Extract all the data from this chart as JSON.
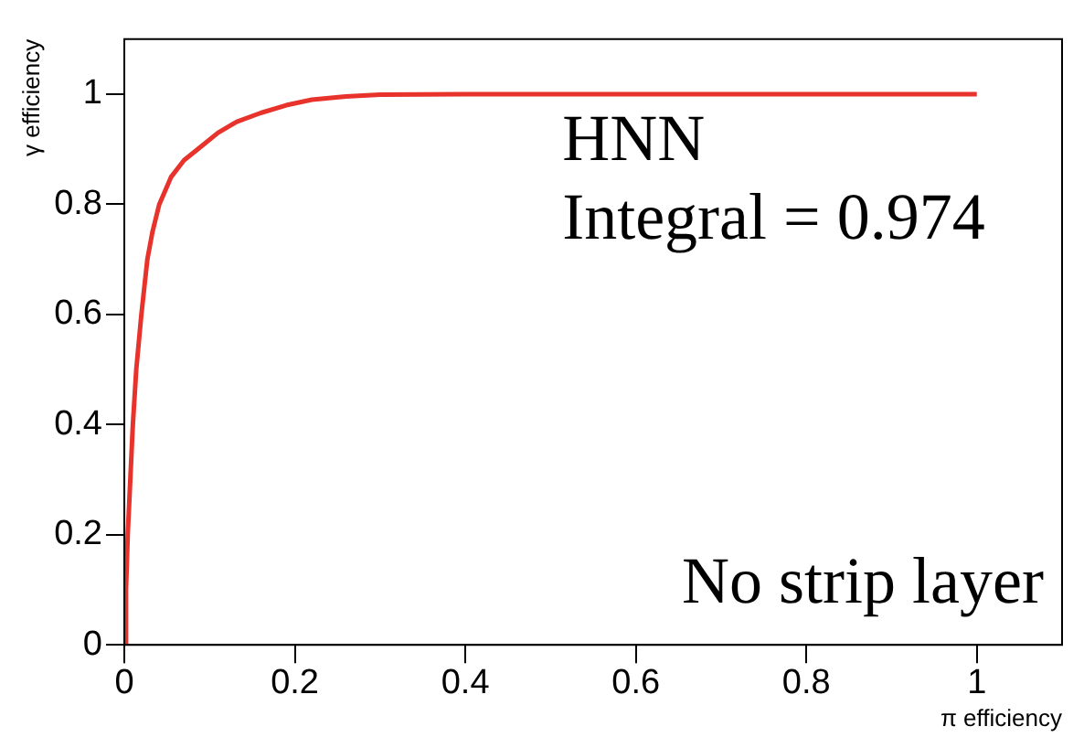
{
  "chart_data": {
    "type": "line",
    "xlabel": "π efficiency",
    "ylabel": "γ efficiency",
    "x": [
      0,
      0.002,
      0.004,
      0.007,
      0.01,
      0.014,
      0.02,
      0.027,
      0.033,
      0.041,
      0.055,
      0.07,
      0.086,
      0.11,
      0.132,
      0.16,
      0.19,
      0.22,
      0.26,
      0.3,
      0.4,
      0.6,
      0.8,
      1
    ],
    "series": [
      {
        "color": "#e8322c",
        "values": [
          0,
          0.1,
          0.2,
          0.3,
          0.4,
          0.5,
          0.6,
          0.7,
          0.75,
          0.8,
          0.85,
          0.88,
          0.9,
          0.93,
          0.95,
          0.966,
          0.98,
          0.99,
          0.996,
          0.999,
          1,
          1,
          1,
          1
        ]
      }
    ],
    "xlim": [
      0,
      1.1
    ],
    "ylim": [
      0,
      1.1
    ],
    "xticks": [
      0,
      0.2,
      0.4,
      0.6,
      0.8,
      1
    ],
    "yticks": [
      0,
      0.2,
      0.4,
      0.6,
      0.8,
      1
    ],
    "grid": false,
    "legend": false,
    "marker": "none",
    "line_style": "solid",
    "annotations": [
      "HNN",
      "Integral = 0.974",
      "No strip layer"
    ]
  }
}
